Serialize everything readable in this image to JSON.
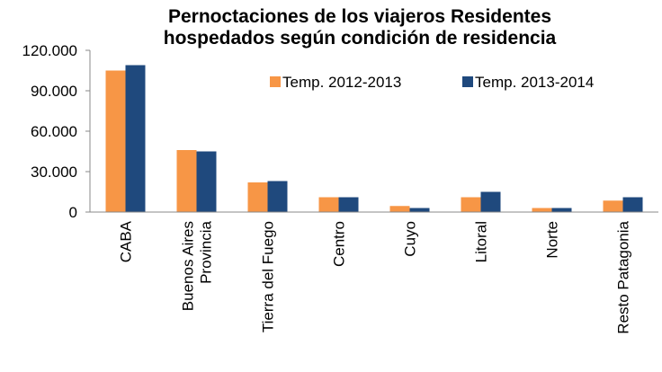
{
  "chart_data": {
    "type": "bar",
    "title": "Pernoctaciones de los viajeros Residentes\nhospedados según condición de residencia",
    "categories": [
      "CABA",
      "Buenos Aires\nProvincia",
      "Tierra del Fuego",
      "Centro",
      "Cuyo",
      "Litoral",
      "Norte",
      "Resto Patagonia"
    ],
    "series": [
      {
        "name": "Temp. 2012-2013",
        "color": "#f79646",
        "values": [
          105000,
          46000,
          22000,
          11000,
          4500,
          11000,
          3000,
          8500
        ]
      },
      {
        "name": "Temp. 2013-2014",
        "color": "#1f497d",
        "values": [
          109000,
          45000,
          23000,
          11000,
          3000,
          15000,
          3000,
          11000
        ]
      }
    ],
    "ylim": [
      0,
      120000
    ],
    "yticks": [
      0,
      {
        "value": 30000,
        "label": "30.000"
      },
      {
        "value": 60000,
        "label": "60.000"
      },
      {
        "value": 90000,
        "label": "90.000"
      },
      {
        "value": 120000,
        "label": "120.000"
      }
    ],
    "grid": false,
    "legend": "top-right"
  }
}
